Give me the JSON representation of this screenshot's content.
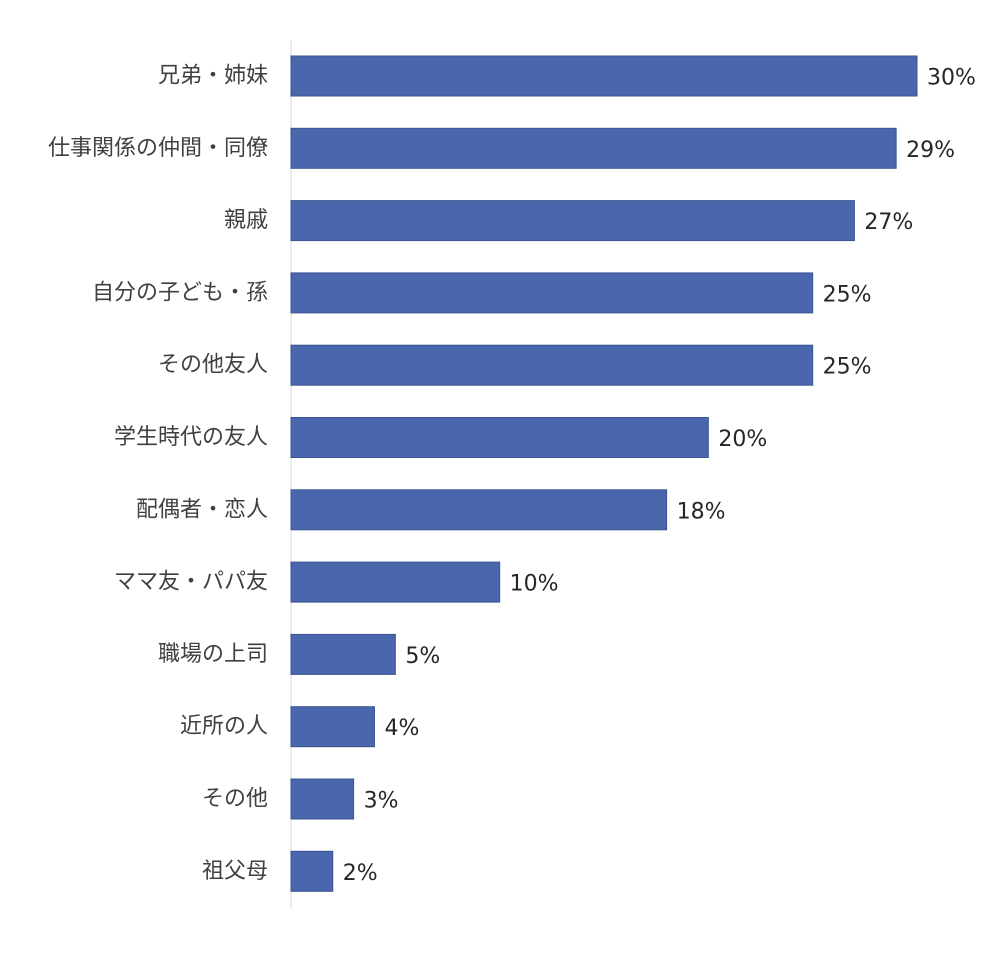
{
  "chart_data": {
    "type": "bar",
    "orientation": "horizontal",
    "categories": [
      "兄弟・姉妹",
      "仕事関係の仲間・同僚",
      "親戚",
      "自分の子ども・孫",
      "その他友人",
      "学生時代の友人",
      "配偶者・恋人",
      "ママ友・パパ友",
      "職場の上司",
      "近所の人",
      "その他",
      "祖父母"
    ],
    "values": [
      30,
      29,
      27,
      25,
      25,
      20,
      18,
      10,
      5,
      4,
      3,
      2
    ],
    "value_labels": [
      "30%",
      "29%",
      "27%",
      "25%",
      "25%",
      "20%",
      "18%",
      "10%",
      "5%",
      "4%",
      "3%",
      "2%"
    ],
    "title": "",
    "xlabel": "",
    "ylabel": "",
    "xlim": [
      0,
      30
    ],
    "grid": false,
    "legend": "none",
    "bar_color": "#4a66ac",
    "axis_color": "#d9d9d9"
  }
}
